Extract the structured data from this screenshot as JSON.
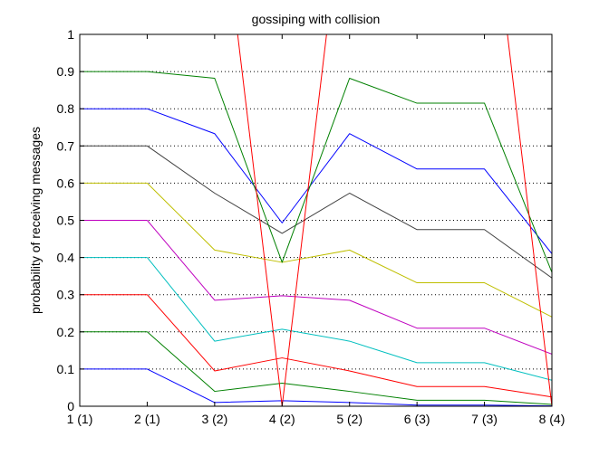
{
  "chart_data": {
    "type": "line",
    "title": "gossiping with collision",
    "xlabel": "",
    "ylabel": "probability of receiving messages",
    "categories": [
      "1 (1)",
      "2 (1)",
      "3 (2)",
      "4 (2)",
      "5 (2)",
      "6 (3)",
      "7 (3)",
      "8 (4)"
    ],
    "x": [
      1,
      2,
      3,
      4,
      5,
      6,
      7,
      8
    ],
    "xlim": [
      1,
      8
    ],
    "ylim": [
      0,
      1
    ],
    "yticks": [
      0,
      0.1,
      0.2,
      0.3,
      0.4,
      0.5,
      0.6,
      0.7,
      0.8,
      0.9,
      1
    ],
    "ytick_labels": [
      "0",
      "0.1",
      "0.2",
      "0.3",
      "0.4",
      "0.5",
      "0.6",
      "0.7",
      "0.8",
      "0.9",
      "1"
    ],
    "grid": "horizontal dotted",
    "legend": "none",
    "series": [
      {
        "color": "#0000ff",
        "values": [
          0.1,
          0.1,
          0.01,
          0.015,
          0.01,
          0.003,
          0.003,
          0.001
        ]
      },
      {
        "color": "#008000",
        "values": [
          0.2,
          0.2,
          0.04,
          0.062,
          0.04,
          0.016,
          0.016,
          0.005
        ]
      },
      {
        "color": "#ff0000",
        "values": [
          0.3,
          0.3,
          0.095,
          0.13,
          0.095,
          0.053,
          0.053,
          0.025
        ]
      },
      {
        "color": "#00bfbf",
        "values": [
          0.4,
          0.4,
          0.175,
          0.207,
          0.175,
          0.117,
          0.117,
          0.07
        ]
      },
      {
        "color": "#bf00bf",
        "values": [
          0.5,
          0.5,
          0.285,
          0.297,
          0.285,
          0.21,
          0.21,
          0.14
        ]
      },
      {
        "color": "#bfbf00",
        "values": [
          0.6,
          0.6,
          0.42,
          0.387,
          0.42,
          0.332,
          0.332,
          0.24
        ]
      },
      {
        "color": "#404040",
        "values": [
          0.7,
          0.7,
          0.573,
          0.465,
          0.573,
          0.475,
          0.475,
          0.345
        ]
      },
      {
        "color": "#0000ff",
        "values": [
          0.8,
          0.8,
          0.733,
          0.493,
          0.733,
          0.638,
          0.638,
          0.41
        ]
      },
      {
        "color": "#008000",
        "values": [
          0.9,
          0.9,
          0.882,
          0.387,
          0.882,
          0.815,
          0.815,
          0.36
        ]
      },
      {
        "color": "#ff0000",
        "values": [
          1.0,
          1.0,
          1.0,
          0.0,
          1.0,
          1.0,
          1.0,
          0.0
        ],
        "clip": true
      }
    ]
  }
}
